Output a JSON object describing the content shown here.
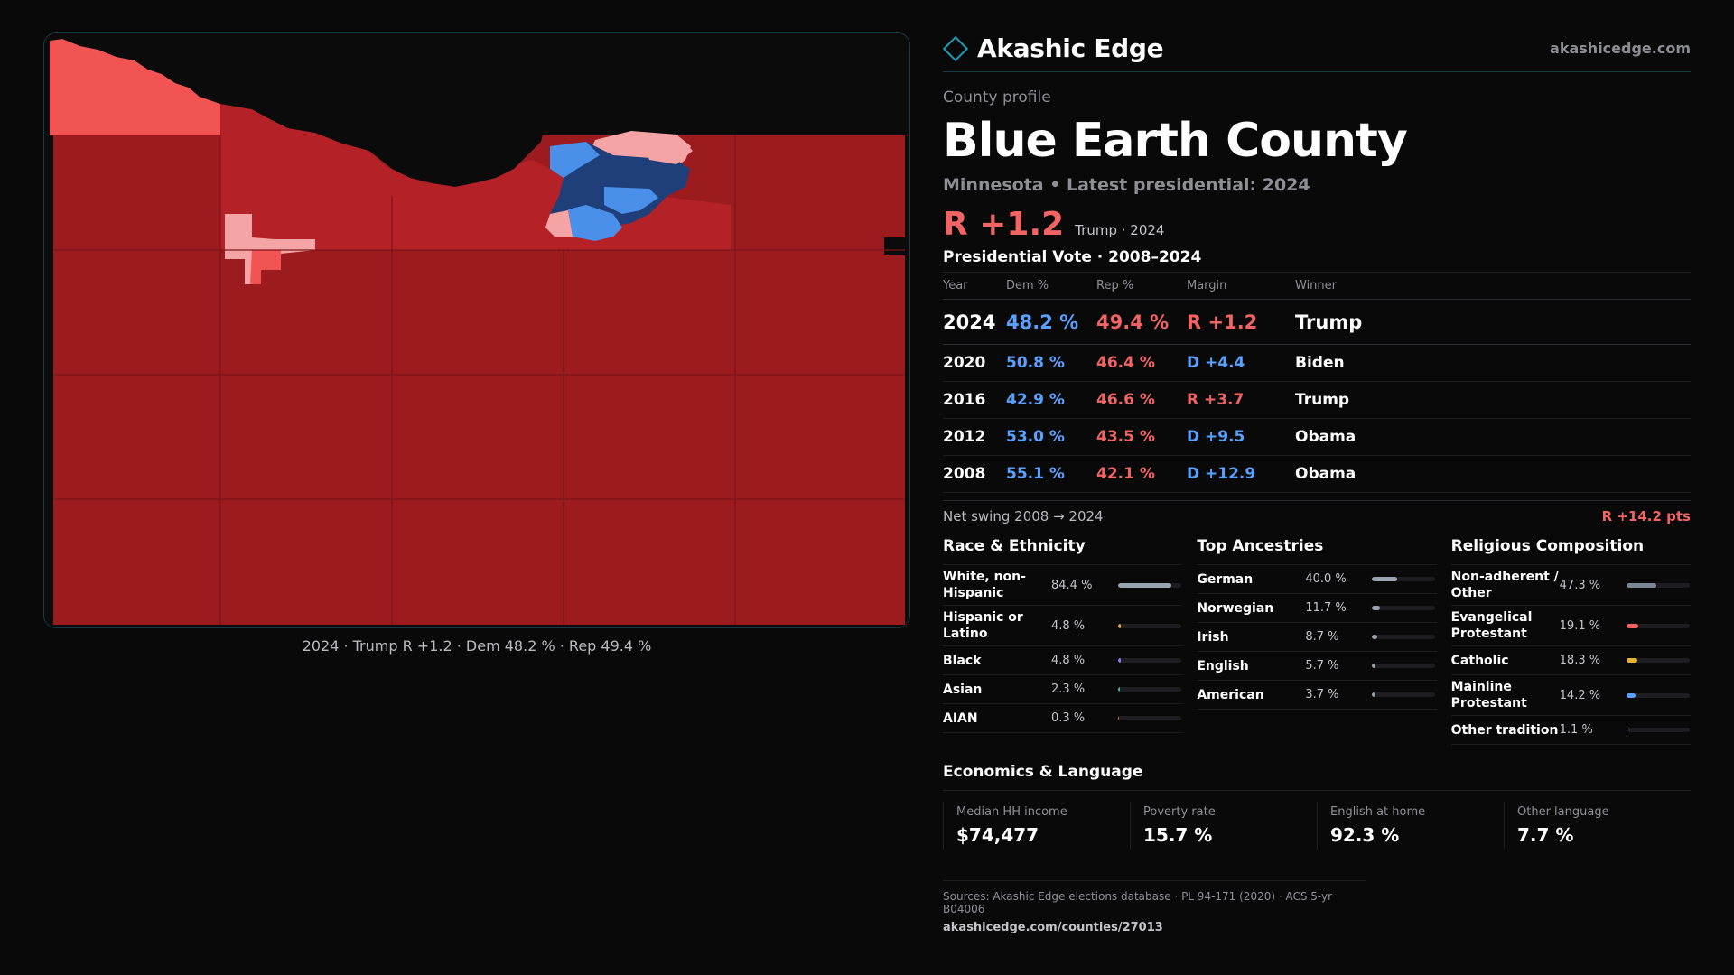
{
  "brand": {
    "name": "Akashic Edge",
    "url": "akashicedge.com"
  },
  "kicker": "County profile",
  "county": "Blue Earth County",
  "subtitle": "Minnesota • Latest presidential: 2024",
  "headline": {
    "margin": "R +1.2",
    "note": "Trump · 2024"
  },
  "map_caption": "2024 · Trump R +1.2 · Dem 48.2 % · Rep 49.4 %",
  "colors": {
    "dem": "#5aa0ff",
    "rep": "#f26464",
    "map_safe_red": "#9c1b1f",
    "map_mid_red": "#b42228",
    "map_light_red": "#f25454",
    "map_pink": "#f4a4a4",
    "map_blue": "#4a8fea",
    "map_navy": "#1e3f7a"
  },
  "vote_table": {
    "title": "Presidential Vote · 2008–2024",
    "headers": [
      "Year",
      "Dem %",
      "Rep %",
      "Margin",
      "Winner"
    ],
    "rows": [
      {
        "year": "2024",
        "dem": "48.2 %",
        "rep": "49.4 %",
        "margin": "R +1.2",
        "winner": "Trump",
        "party": "R"
      },
      {
        "year": "2020",
        "dem": "50.8 %",
        "rep": "46.4 %",
        "margin": "D +4.4",
        "winner": "Biden",
        "party": "D"
      },
      {
        "year": "2016",
        "dem": "42.9 %",
        "rep": "46.6 %",
        "margin": "R +3.7",
        "winner": "Trump",
        "party": "R"
      },
      {
        "year": "2012",
        "dem": "53.0 %",
        "rep": "43.5 %",
        "margin": "D +9.5",
        "winner": "Obama",
        "party": "D"
      },
      {
        "year": "2008",
        "dem": "55.1 %",
        "rep": "42.1 %",
        "margin": "D +12.9",
        "winner": "Obama",
        "party": "D"
      }
    ]
  },
  "swing": {
    "label": "Net swing 2008 → 2024",
    "value": "R +14.2 pts"
  },
  "race": {
    "title": "Race & Ethnicity",
    "items": [
      {
        "label": "White, non-Hispanic",
        "value": "84.4 %",
        "share": 84.4,
        "color": "#9aa3b2"
      },
      {
        "label": "Hispanic or Latino",
        "value": "4.8 %",
        "share": 4.8,
        "color": "#e8a33a"
      },
      {
        "label": "Black",
        "value": "4.8 %",
        "share": 4.8,
        "color": "#8b7cf0"
      },
      {
        "label": "Asian",
        "value": "2.3 %",
        "share": 2.3,
        "color": "#3bbfa0"
      },
      {
        "label": "AIAN",
        "value": "0.3 %",
        "share": 0.3,
        "color": "#e06a4a"
      }
    ]
  },
  "ancestry": {
    "title": "Top Ancestries",
    "items": [
      {
        "label": "German",
        "value": "40.0 %",
        "share": 40.0,
        "color": "#9aa3b2"
      },
      {
        "label": "Norwegian",
        "value": "11.7 %",
        "share": 11.7,
        "color": "#9aa3b2"
      },
      {
        "label": "Irish",
        "value": "8.7 %",
        "share": 8.7,
        "color": "#9aa3b2"
      },
      {
        "label": "English",
        "value": "5.7 %",
        "share": 5.7,
        "color": "#9aa3b2"
      },
      {
        "label": "American",
        "value": "3.7 %",
        "share": 3.7,
        "color": "#9aa3b2"
      }
    ]
  },
  "religion": {
    "title": "Religious Composition",
    "items": [
      {
        "label": "Non-adherent / Other",
        "value": "47.3 %",
        "share": 47.3,
        "color": "#7c8596"
      },
      {
        "label": "Evangelical Protestant",
        "value": "19.1 %",
        "share": 19.1,
        "color": "#f26464"
      },
      {
        "label": "Catholic",
        "value": "18.3 %",
        "share": 18.3,
        "color": "#e8b33a"
      },
      {
        "label": "Mainline Protestant",
        "value": "14.2 %",
        "share": 14.2,
        "color": "#5aa0ff"
      },
      {
        "label": "Other tradition",
        "value": "1.1 %",
        "share": 1.1,
        "color": "#9aa3b2"
      }
    ]
  },
  "economics": {
    "title": "Economics & Language",
    "items": [
      {
        "label": "Median HH income",
        "value": "$74,477"
      },
      {
        "label": "Poverty rate",
        "value": "15.7 %"
      },
      {
        "label": "English at home",
        "value": "92.3 %"
      },
      {
        "label": "Other language",
        "value": "7.7 %"
      }
    ]
  },
  "sources": {
    "text": "Sources: Akashic Edge elections database · PL 94-171 (2020) · ACS 5-yr B04006",
    "url": "akashicedge.com/counties/27013"
  }
}
